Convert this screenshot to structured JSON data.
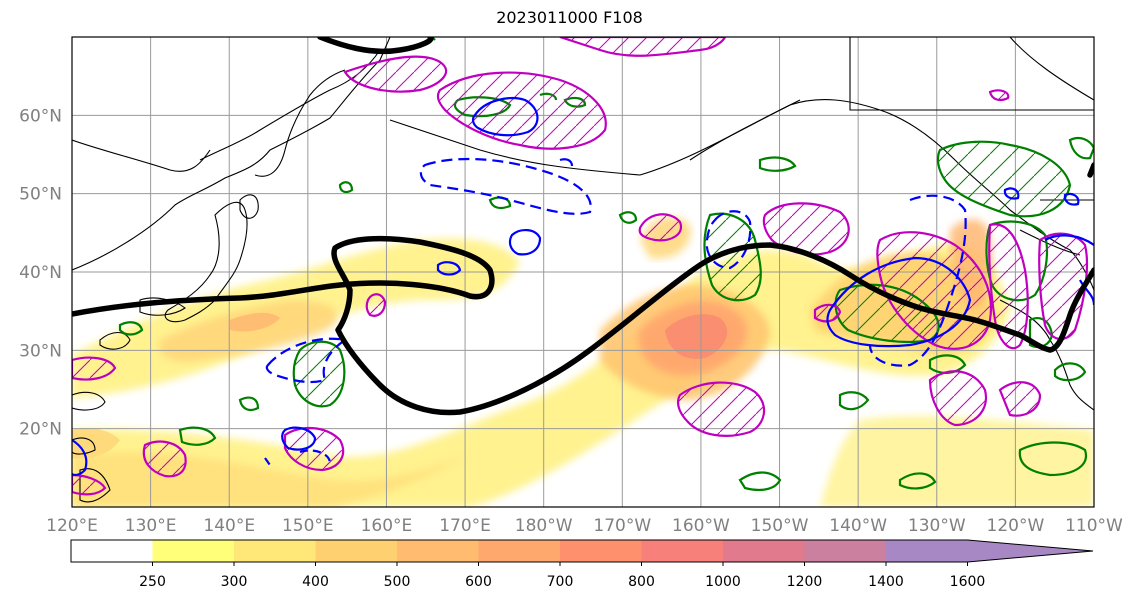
{
  "title": "2023011000 F108",
  "map": {
    "lon_labels": [
      "120°E",
      "130°E",
      "140°E",
      "150°E",
      "160°E",
      "170°E",
      "180°W",
      "170°W",
      "160°W",
      "150°W",
      "140°W",
      "130°W",
      "120°W",
      "110°W"
    ],
    "lat_labels": [
      "60°N",
      "50°N",
      "40°N",
      "30°N",
      "20°N"
    ],
    "extent": {
      "lon_min": 120,
      "lon_max": 250,
      "lat_min": 10,
      "lat_max": 70
    },
    "colors": {
      "jet_contour": "#000000",
      "positive_hatched": "#c000c0",
      "negative_dashed": "#0000ff",
      "green_contours": "#008000",
      "grid": "#9a9a9a",
      "tick_labels": "#808080"
    }
  },
  "colorbar": {
    "ticks": [
      "250",
      "300",
      "400",
      "500",
      "600",
      "700",
      "800",
      "1000",
      "1200",
      "1400",
      "1600"
    ],
    "colors": [
      "#ffffff",
      "#ffff7a",
      "#ffe878",
      "#ffd070",
      "#ffbb70",
      "#ffa86e",
      "#ff906e",
      "#f7807a",
      "#e07a8c",
      "#cc80a0",
      "#a888c4"
    ],
    "extend": "max"
  }
}
